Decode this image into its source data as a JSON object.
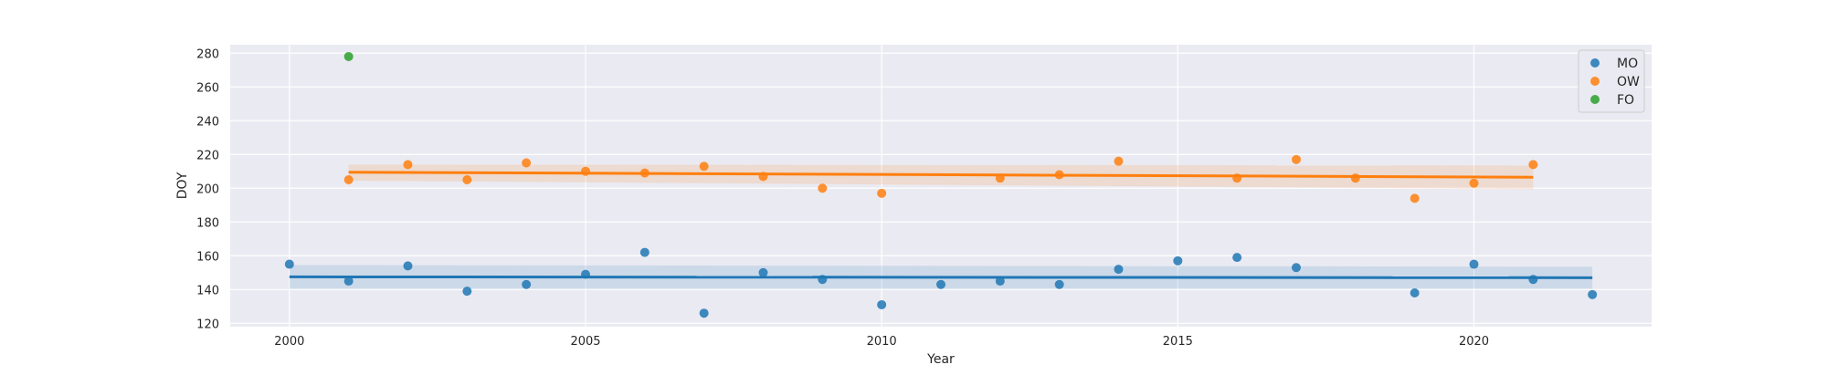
{
  "chart_data": {
    "type": "scatter",
    "title": "",
    "xlabel": "Year",
    "ylabel": "DOY",
    "xlim": [
      1999,
      2023
    ],
    "ylim": [
      118,
      285
    ],
    "x_ticks": [
      2000,
      2005,
      2010,
      2015,
      2020
    ],
    "y_ticks": [
      120,
      140,
      160,
      180,
      200,
      220,
      240,
      260,
      280
    ],
    "grid": true,
    "legend_position": "top-right",
    "series": [
      {
        "name": "MO",
        "color": "#1f77b4",
        "x": [
          2000,
          2001,
          2002,
          2003,
          2004,
          2005,
          2006,
          2007,
          2008,
          2009,
          2010,
          2011,
          2012,
          2013,
          2014,
          2015,
          2016,
          2017,
          2019,
          2020,
          2021,
          2022
        ],
        "y": [
          155,
          145,
          154,
          139,
          143,
          149,
          162,
          126,
          150,
          146,
          131,
          143,
          145,
          143,
          152,
          157,
          159,
          153,
          138,
          155,
          146,
          137
        ],
        "trend": {
          "x": [
            2000,
            2022
          ],
          "y": [
            147.5,
            147
          ],
          "ci": [
            [
              140.5,
              154.5
            ],
            [
              140.5,
              153.5
            ]
          ]
        }
      },
      {
        "name": "OW",
        "color": "#ff7f0e",
        "x": [
          2001,
          2002,
          2003,
          2004,
          2005,
          2006,
          2007,
          2008,
          2009,
          2010,
          2012,
          2013,
          2014,
          2016,
          2017,
          2018,
          2019,
          2020,
          2021
        ],
        "y": [
          205,
          214,
          205,
          215,
          210,
          209,
          213,
          207,
          200,
          197,
          206,
          208,
          216,
          206,
          217,
          206,
          194,
          203,
          214
        ],
        "trend": {
          "x": [
            2001,
            2021
          ],
          "y": [
            209.5,
            206.5
          ],
          "ci": [
            [
              204.5,
              214
            ],
            [
              199.5,
              213.5
            ]
          ]
        }
      },
      {
        "name": "FO",
        "color": "#2ca02c",
        "x": [
          2001
        ],
        "y": [
          278
        ]
      }
    ]
  }
}
